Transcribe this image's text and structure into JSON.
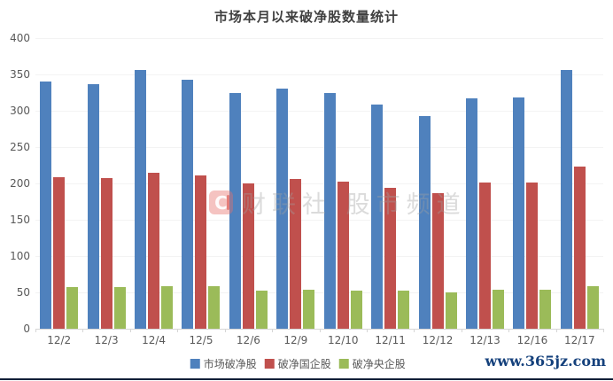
{
  "chart": {
    "title": "市场本月以来破净股数量统计"
  },
  "chart_data": {
    "type": "bar",
    "title": "市场本月以来破净股数量统计",
    "categories": [
      "12/2",
      "12/3",
      "12/4",
      "12/5",
      "12/6",
      "12/9",
      "12/10",
      "12/11",
      "12/12",
      "12/13",
      "12/16",
      "12/17"
    ],
    "series": [
      {
        "name": "市场破净股",
        "color": "#4F81BD",
        "values": [
          340,
          337,
          356,
          343,
          325,
          331,
          325,
          308,
          293,
          317,
          318,
          356
        ]
      },
      {
        "name": "破净国企股",
        "color": "#C0504D",
        "values": [
          208,
          207,
          215,
          211,
          200,
          206,
          202,
          194,
          186,
          201,
          201,
          223
        ]
      },
      {
        "name": "破净央企股",
        "color": "#9BBB59",
        "values": [
          57,
          57,
          58,
          58,
          53,
          54,
          52,
          52,
          50,
          54,
          54,
          59
        ]
      }
    ],
    "xlabel": "",
    "ylabel": "",
    "ylim": [
      0,
      400
    ],
    "y_ticks": [
      0,
      50,
      100,
      150,
      200,
      250,
      300,
      350,
      400
    ],
    "grid": true,
    "legend_position": "bottom"
  },
  "watermark": {
    "logo_letter": "C",
    "text": "财联社 股市频道"
  },
  "footer": {
    "website": "www.365jz.com"
  }
}
